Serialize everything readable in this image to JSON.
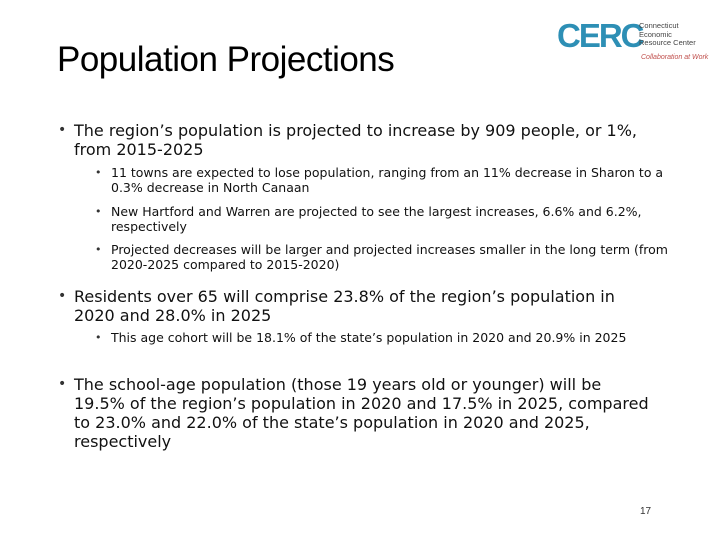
{
  "slide": {
    "title": "Population Projections",
    "page_number": "17"
  },
  "logo": {
    "letters": "CERC",
    "name_line1": "Connecticut",
    "name_line2": "Economic",
    "name_line3": "Resource Center",
    "tagline": "Collaboration at Work"
  },
  "bullets": [
    {
      "text": "The region’s population is projected to increase by 909 people, or 1%, from 2015-2025",
      "sub": [
        "11 towns are expected to lose population, ranging from an 11% decrease in Sharon to a 0.3% decrease in North Canaan",
        "New Hartford and Warren are projected to see the largest increases, 6.6% and 6.2%, respectively",
        "Projected decreases will be larger and projected increases smaller in the long term (from 2020-2025 compared to 2015-2020)"
      ]
    },
    {
      "text": "Residents over 65 will comprise 23.8% of the region’s population in 2020 and 28.0% in 2025",
      "sub": [
        "This age cohort will be 18.1% of the state’s population in 2020 and 20.9% in 2025"
      ]
    },
    {
      "text": "The school-age population (those 19 years old or younger) will be 19.5% of the region’s population in 2020 and 17.5% in 2025, compared to 23.0% and 22.0% of the state’s population in 2020 and 2025, respectively",
      "sub": []
    }
  ]
}
